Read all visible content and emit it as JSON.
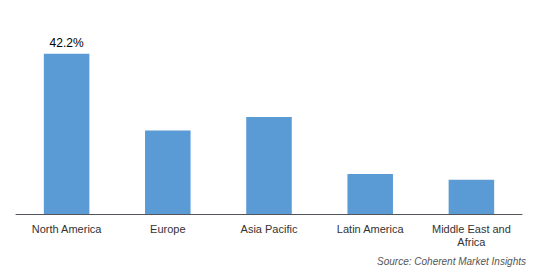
{
  "chart_data": {
    "type": "bar",
    "categories": [
      "North America",
      "Europe",
      "Asia Pacific",
      "Latin America",
      "Middle East and\nAfrica"
    ],
    "values": [
      42.2,
      22.0,
      25.5,
      10.5,
      9.0
    ],
    "color": "#5B9BD5",
    "ylim": [
      0,
      50
    ],
    "tick_labels": "x",
    "grid": false,
    "annotations": [
      {
        "text": "42.2%",
        "category": "North America",
        "value": 42.2
      },
      {
        "text": "Source: Coherent Market Insights"
      }
    ]
  }
}
